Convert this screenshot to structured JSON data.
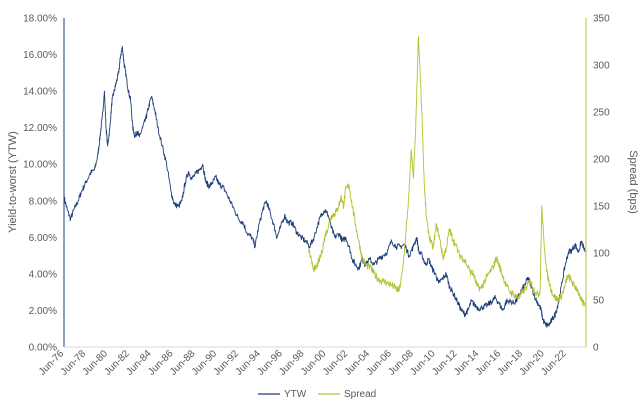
{
  "chart_data": {
    "type": "line",
    "title": "",
    "y_left_label": "Yield-to-worst (YTW)",
    "y_right_label": "Spread (bps)",
    "y_left_range": [
      0,
      18
    ],
    "y_left_ticks": [
      "0.00%",
      "2.00%",
      "4.00%",
      "6.00%",
      "8.00%",
      "10.00%",
      "12.00%",
      "14.00%",
      "16.00%",
      "18.00%"
    ],
    "y_right_range": [
      0,
      350
    ],
    "y_right_ticks": [
      "0",
      "50",
      "100",
      "150",
      "200",
      "250",
      "300",
      "350"
    ],
    "x_range": [
      1976.4,
      2024.2
    ],
    "x_ticks": [
      {
        "label": "Jun-76",
        "x": 1976.42
      },
      {
        "label": "Jun-78",
        "x": 1978.42
      },
      {
        "label": "Jun-80",
        "x": 1980.42
      },
      {
        "label": "Jun-82",
        "x": 1982.42
      },
      {
        "label": "Jun-84",
        "x": 1984.42
      },
      {
        "label": "Jun-86",
        "x": 1986.42
      },
      {
        "label": "Jun-88",
        "x": 1988.42
      },
      {
        "label": "Jun-90",
        "x": 1990.42
      },
      {
        "label": "Jun-92",
        "x": 1992.42
      },
      {
        "label": "Jun-94",
        "x": 1994.42
      },
      {
        "label": "Jun-96",
        "x": 1996.42
      },
      {
        "label": "Jun-98",
        "x": 1998.42
      },
      {
        "label": "Jun-00",
        "x": 2000.42
      },
      {
        "label": "Jun-02",
        "x": 2002.42
      },
      {
        "label": "Jun-04",
        "x": 2004.42
      },
      {
        "label": "Jun-06",
        "x": 2006.42
      },
      {
        "label": "Jun-08",
        "x": 2008.42
      },
      {
        "label": "Jun-10",
        "x": 2010.42
      },
      {
        "label": "Jun-12",
        "x": 2012.42
      },
      {
        "label": "Jun-14",
        "x": 2014.42
      },
      {
        "label": "Jun-16",
        "x": 2016.42
      },
      {
        "label": "Jun-18",
        "x": 2018.42
      },
      {
        "label": "Jun-20",
        "x": 2020.42
      },
      {
        "label": "Jun-22",
        "x": 2022.42
      }
    ],
    "grid": false,
    "legend_position": "bottom-center",
    "series": [
      {
        "name": "YTW",
        "axis": "left",
        "color": "#1f3f77",
        "points": [
          [
            1976.4,
            8.2
          ],
          [
            1976.7,
            7.5
          ],
          [
            1977.0,
            7.0
          ],
          [
            1977.3,
            7.5
          ],
          [
            1977.7,
            8.0
          ],
          [
            1978.0,
            8.5
          ],
          [
            1978.4,
            9.0
          ],
          [
            1978.8,
            9.5
          ],
          [
            1979.2,
            9.7
          ],
          [
            1979.5,
            10.5
          ],
          [
            1979.7,
            11.5
          ],
          [
            1979.9,
            12.5
          ],
          [
            1980.1,
            14.0
          ],
          [
            1980.25,
            12.0
          ],
          [
            1980.4,
            11.0
          ],
          [
            1980.6,
            12.0
          ],
          [
            1980.8,
            13.5
          ],
          [
            1981.0,
            14.0
          ],
          [
            1981.2,
            14.5
          ],
          [
            1981.4,
            15.0
          ],
          [
            1981.6,
            16.0
          ],
          [
            1981.75,
            16.4
          ],
          [
            1981.9,
            15.5
          ],
          [
            1982.1,
            14.8
          ],
          [
            1982.3,
            14.0
          ],
          [
            1982.5,
            13.5
          ],
          [
            1982.7,
            12.0
          ],
          [
            1982.9,
            11.5
          ],
          [
            1983.1,
            11.8
          ],
          [
            1983.3,
            11.5
          ],
          [
            1983.6,
            12.0
          ],
          [
            1983.9,
            12.5
          ],
          [
            1984.1,
            13.0
          ],
          [
            1984.4,
            13.7
          ],
          [
            1984.7,
            13.0
          ],
          [
            1985.0,
            12.0
          ],
          [
            1985.4,
            11.0
          ],
          [
            1985.8,
            10.0
          ],
          [
            1986.2,
            8.5
          ],
          [
            1986.5,
            7.8
          ],
          [
            1986.9,
            7.7
          ],
          [
            1987.2,
            8.0
          ],
          [
            1987.5,
            9.0
          ],
          [
            1987.8,
            9.6
          ],
          [
            1988.1,
            9.2
          ],
          [
            1988.5,
            9.5
          ],
          [
            1988.8,
            9.7
          ],
          [
            1989.1,
            10.0
          ],
          [
            1989.4,
            9.0
          ],
          [
            1989.7,
            8.8
          ],
          [
            1990.0,
            9.0
          ],
          [
            1990.3,
            9.3
          ],
          [
            1990.6,
            8.9
          ],
          [
            1990.9,
            8.8
          ],
          [
            1991.2,
            8.5
          ],
          [
            1991.6,
            8.0
          ],
          [
            1992.0,
            7.5
          ],
          [
            1992.4,
            7.0
          ],
          [
            1992.8,
            6.8
          ],
          [
            1993.2,
            6.2
          ],
          [
            1993.6,
            6.0
          ],
          [
            1993.9,
            5.5
          ],
          [
            1994.2,
            6.5
          ],
          [
            1994.6,
            7.5
          ],
          [
            1994.9,
            8.0
          ],
          [
            1995.2,
            7.5
          ],
          [
            1995.6,
            6.7
          ],
          [
            1995.9,
            6.0
          ],
          [
            1996.2,
            6.5
          ],
          [
            1996.6,
            7.2
          ],
          [
            1996.9,
            6.8
          ],
          [
            1997.3,
            6.8
          ],
          [
            1997.7,
            6.3
          ],
          [
            1998.1,
            6.0
          ],
          [
            1998.5,
            5.8
          ],
          [
            1998.9,
            5.5
          ],
          [
            1999.3,
            6.0
          ],
          [
            1999.7,
            6.8
          ],
          [
            2000.0,
            7.3
          ],
          [
            2000.3,
            7.5
          ],
          [
            2000.6,
            7.2
          ],
          [
            2000.9,
            6.5
          ],
          [
            2001.2,
            6.0
          ],
          [
            2001.6,
            6.2
          ],
          [
            2001.9,
            5.8
          ],
          [
            2002.2,
            6.0
          ],
          [
            2002.5,
            5.5
          ],
          [
            2002.8,
            4.8
          ],
          [
            2003.1,
            4.5
          ],
          [
            2003.4,
            4.3
          ],
          [
            2003.7,
            4.8
          ],
          [
            2004.0,
            4.5
          ],
          [
            2004.4,
            4.8
          ],
          [
            2004.8,
            4.5
          ],
          [
            2005.2,
            4.8
          ],
          [
            2005.6,
            5.0
          ],
          [
            2006.0,
            5.2
          ],
          [
            2006.4,
            5.8
          ],
          [
            2006.8,
            5.5
          ],
          [
            2007.2,
            5.5
          ],
          [
            2007.6,
            5.6
          ],
          [
            2008.0,
            5.0
          ],
          [
            2008.4,
            5.5
          ],
          [
            2008.7,
            6.0
          ],
          [
            2008.9,
            5.2
          ],
          [
            2009.2,
            5.0
          ],
          [
            2009.5,
            4.5
          ],
          [
            2009.8,
            4.8
          ],
          [
            2010.1,
            4.3
          ],
          [
            2010.4,
            4.0
          ],
          [
            2010.7,
            3.5
          ],
          [
            2011.0,
            3.7
          ],
          [
            2011.4,
            4.0
          ],
          [
            2011.7,
            3.3
          ],
          [
            2012.0,
            3.0
          ],
          [
            2012.4,
            2.5
          ],
          [
            2012.8,
            2.0
          ],
          [
            2013.1,
            1.8
          ],
          [
            2013.4,
            2.0
          ],
          [
            2013.7,
            2.5
          ],
          [
            2014.0,
            2.3
          ],
          [
            2014.4,
            2.1
          ],
          [
            2014.8,
            2.2
          ],
          [
            2015.2,
            2.3
          ],
          [
            2015.6,
            2.5
          ],
          [
            2015.9,
            2.7
          ],
          [
            2016.2,
            2.4
          ],
          [
            2016.6,
            2.0
          ],
          [
            2016.9,
            2.5
          ],
          [
            2017.2,
            2.5
          ],
          [
            2017.6,
            2.4
          ],
          [
            2017.9,
            2.6
          ],
          [
            2018.2,
            3.0
          ],
          [
            2018.6,
            3.4
          ],
          [
            2018.9,
            3.8
          ],
          [
            2019.2,
            3.3
          ],
          [
            2019.6,
            2.6
          ],
          [
            2019.9,
            2.3
          ],
          [
            2020.1,
            2.0
          ],
          [
            2020.25,
            1.5
          ],
          [
            2020.5,
            1.2
          ],
          [
            2020.8,
            1.2
          ],
          [
            2021.1,
            1.5
          ],
          [
            2021.4,
            1.8
          ],
          [
            2021.7,
            2.5
          ],
          [
            2022.0,
            3.5
          ],
          [
            2022.3,
            4.5
          ],
          [
            2022.6,
            5.2
          ],
          [
            2022.9,
            5.3
          ],
          [
            2023.2,
            5.6
          ],
          [
            2023.5,
            5.2
          ],
          [
            2023.8,
            5.8
          ],
          [
            2024.1,
            5.2
          ]
        ]
      },
      {
        "name": "Spread",
        "axis": "right",
        "color": "#b5c234",
        "points": [
          [
            1998.8,
            105
          ],
          [
            1999.1,
            88
          ],
          [
            1999.4,
            82
          ],
          [
            1999.7,
            90
          ],
          [
            2000.0,
            100
          ],
          [
            2000.3,
            118
          ],
          [
            2000.6,
            128
          ],
          [
            2000.9,
            140
          ],
          [
            2001.2,
            142
          ],
          [
            2001.5,
            148
          ],
          [
            2001.8,
            160
          ],
          [
            2002.0,
            150
          ],
          [
            2002.2,
            168
          ],
          [
            2002.5,
            172
          ],
          [
            2002.8,
            150
          ],
          [
            2003.1,
            130
          ],
          [
            2003.4,
            112
          ],
          [
            2003.7,
            95
          ],
          [
            2004.0,
            88
          ],
          [
            2004.4,
            85
          ],
          [
            2004.8,
            78
          ],
          [
            2005.2,
            72
          ],
          [
            2005.6,
            70
          ],
          [
            2006.0,
            68
          ],
          [
            2006.4,
            66
          ],
          [
            2006.8,
            62
          ],
          [
            2007.1,
            60
          ],
          [
            2007.4,
            80
          ],
          [
            2007.7,
            120
          ],
          [
            2008.0,
            165
          ],
          [
            2008.2,
            210
          ],
          [
            2008.4,
            180
          ],
          [
            2008.6,
            230
          ],
          [
            2008.75,
            290
          ],
          [
            2008.85,
            330
          ],
          [
            2009.0,
            295
          ],
          [
            2009.2,
            240
          ],
          [
            2009.4,
            170
          ],
          [
            2009.6,
            135
          ],
          [
            2009.9,
            115
          ],
          [
            2010.2,
            105
          ],
          [
            2010.5,
            130
          ],
          [
            2010.8,
            115
          ],
          [
            2011.1,
            95
          ],
          [
            2011.4,
            105
          ],
          [
            2011.7,
            125
          ],
          [
            2011.9,
            118
          ],
          [
            2012.2,
            110
          ],
          [
            2012.6,
            98
          ],
          [
            2012.9,
            95
          ],
          [
            2013.2,
            90
          ],
          [
            2013.6,
            80
          ],
          [
            2013.9,
            78
          ],
          [
            2014.2,
            65
          ],
          [
            2014.6,
            62
          ],
          [
            2014.9,
            70
          ],
          [
            2015.3,
            78
          ],
          [
            2015.7,
            85
          ],
          [
            2016.0,
            95
          ],
          [
            2016.3,
            85
          ],
          [
            2016.6,
            75
          ],
          [
            2016.9,
            65
          ],
          [
            2017.3,
            58
          ],
          [
            2017.7,
            55
          ],
          [
            2018.0,
            52
          ],
          [
            2018.4,
            58
          ],
          [
            2018.8,
            65
          ],
          [
            2019.1,
            70
          ],
          [
            2019.4,
            62
          ],
          [
            2019.8,
            55
          ],
          [
            2020.0,
            60
          ],
          [
            2020.15,
            150
          ],
          [
            2020.3,
            120
          ],
          [
            2020.6,
            80
          ],
          [
            2020.9,
            65
          ],
          [
            2021.2,
            55
          ],
          [
            2021.6,
            50
          ],
          [
            2021.9,
            53
          ],
          [
            2022.2,
            62
          ],
          [
            2022.5,
            75
          ],
          [
            2022.8,
            72
          ],
          [
            2023.1,
            65
          ],
          [
            2023.4,
            62
          ],
          [
            2023.7,
            50
          ],
          [
            2024.1,
            45
          ]
        ]
      }
    ]
  }
}
